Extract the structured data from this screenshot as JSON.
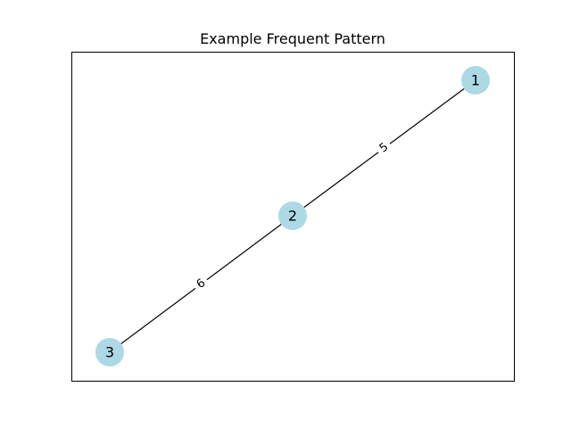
{
  "title": "Example Frequent Pattern",
  "style": {
    "node_color": "#add8e6",
    "edge_color": "#000000",
    "frame_color": "#000000",
    "background": "#ffffff"
  },
  "nodes": [
    {
      "id": "1",
      "label": "1"
    },
    {
      "id": "2",
      "label": "2"
    },
    {
      "id": "3",
      "label": "3"
    }
  ],
  "edges": [
    {
      "source": "1",
      "target": "2",
      "label": "5"
    },
    {
      "source": "2",
      "target": "3",
      "label": "6"
    }
  ]
}
